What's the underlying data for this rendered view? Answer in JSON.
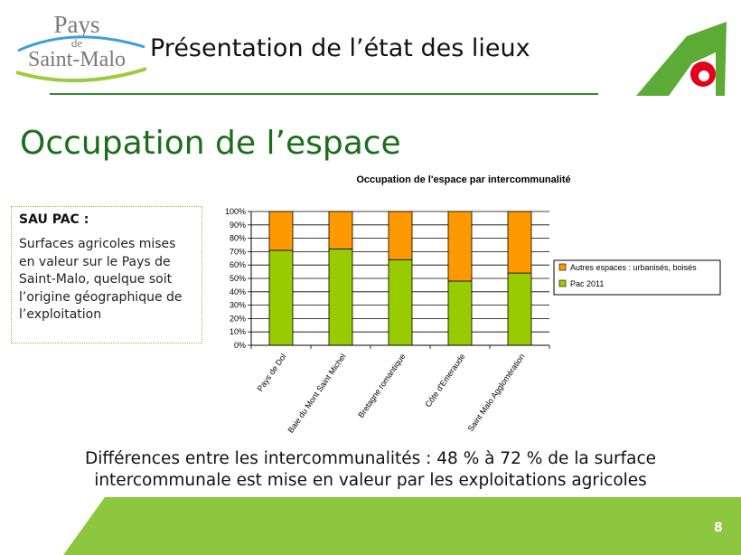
{
  "logo": {
    "line1": "Pays",
    "line2": "de",
    "line3": "Saint-Malo"
  },
  "header": {
    "title": "Présentation de l’état des lieux"
  },
  "section": {
    "title": "Occupation de l’espace"
  },
  "info": {
    "heading": "SAU PAC :",
    "body": "Surfaces agricoles mises en valeur sur le Pays de Saint-Malo, quelque soit l’origine géographique de l’exploitation"
  },
  "footer": {
    "line1": "Différences entre les intercommunalités : 48 % à 72 % de la surface",
    "line2": "intercommunale est mise en valeur par les exploitations agricoles"
  },
  "page": {
    "number": "8"
  },
  "colors": {
    "pac": "#99cc00",
    "autres": "#ff9900",
    "accent": "#2e8b2e",
    "band": "#8dc63f"
  },
  "chart_data": {
    "type": "bar",
    "stacked": true,
    "percent": true,
    "title": "Occupation de l'espace par intercommunalité",
    "categories": [
      "Pays de Dol",
      "Baie du Mont Saint Michel",
      "Bretagne romantique",
      "Côte d'Emeraude",
      "Saint Malo Agglomération"
    ],
    "series": [
      {
        "name": "Pac 2011",
        "color": "#99cc00",
        "values": [
          71,
          72,
          64,
          48,
          54
        ]
      },
      {
        "name": "Autres espaces : urbanisés, boisés",
        "color": "#ff9900",
        "values": [
          29,
          28,
          36,
          52,
          46
        ]
      }
    ],
    "yticks": [
      "0%",
      "10%",
      "20%",
      "30%",
      "40%",
      "50%",
      "60%",
      "70%",
      "80%",
      "90%",
      "100%"
    ],
    "ylim": [
      0,
      100
    ],
    "grid": true,
    "legend": "right"
  }
}
